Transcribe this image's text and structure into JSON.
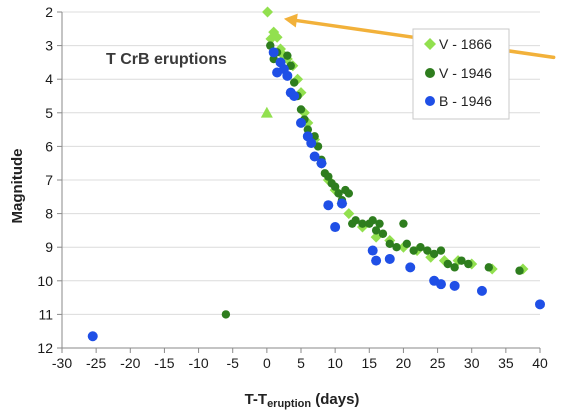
{
  "chart_data": {
    "type": "scatter",
    "title": "T CrB eruptions",
    "xlabel_prefix": "T-T",
    "xlabel_sub": "eruption",
    "xlabel_suffix": " (days)",
    "ylabel": "Magnitude",
    "xlim": [
      -30,
      40
    ],
    "ylim": [
      2,
      12
    ],
    "y_inverted": true,
    "x_ticks": [
      -30,
      -25,
      -20,
      -15,
      -10,
      -5,
      0,
      5,
      10,
      15,
      20,
      25,
      30,
      35,
      40
    ],
    "y_ticks": [
      2,
      3,
      4,
      5,
      6,
      7,
      8,
      9,
      10,
      11,
      12
    ],
    "legend_position": "top-right",
    "colors": {
      "v1866": "#92e04f",
      "v1946": "#2e7d1e",
      "b1946": "#1f4fe6",
      "arrow": "#f2b13a"
    },
    "annotation": {
      "type": "arrow",
      "from": [
        42,
        3.35
      ],
      "to": [
        2.5,
        2.2
      ]
    },
    "series": [
      {
        "name": "V - 1866",
        "marker": "diamond",
        "points": [
          [
            0.1,
            2.0
          ],
          [
            0.6,
            2.8
          ],
          [
            1.0,
            2.6
          ],
          [
            1.5,
            2.75
          ],
          [
            2.0,
            3.1
          ],
          [
            2.5,
            3.3
          ],
          [
            3.0,
            3.4
          ],
          [
            3.8,
            3.6
          ],
          [
            4.5,
            4.0
          ],
          [
            5.0,
            4.4
          ],
          [
            5.5,
            5.0
          ],
          [
            6.0,
            5.3
          ],
          [
            7.0,
            5.8
          ],
          [
            8.0,
            6.5
          ],
          [
            9.0,
            7.0
          ],
          [
            10.0,
            7.3
          ],
          [
            11.0,
            7.7
          ],
          [
            12.0,
            8.0
          ],
          [
            14.0,
            8.4
          ],
          [
            16.0,
            8.7
          ],
          [
            18.0,
            8.8
          ],
          [
            20.0,
            9.0
          ],
          [
            22.0,
            9.1
          ],
          [
            24.0,
            9.3
          ],
          [
            26.0,
            9.4
          ],
          [
            28.0,
            9.4
          ],
          [
            30.0,
            9.5
          ],
          [
            33.0,
            9.65
          ],
          [
            37.5,
            9.65
          ]
        ]
      },
      {
        "name": "",
        "marker": "triangle",
        "points": [
          [
            0.0,
            5.0
          ]
        ]
      },
      {
        "name": "V - 1946",
        "marker": "circle",
        "points": [
          [
            -6.0,
            11.0
          ],
          [
            0.5,
            3.0
          ],
          [
            1.0,
            3.4
          ],
          [
            1.5,
            3.2
          ],
          [
            2.0,
            3.5
          ],
          [
            2.5,
            3.7
          ],
          [
            3.0,
            3.3
          ],
          [
            3.5,
            3.6
          ],
          [
            4.0,
            4.1
          ],
          [
            4.5,
            4.5
          ],
          [
            5.0,
            4.9
          ],
          [
            5.5,
            5.2
          ],
          [
            6.0,
            5.5
          ],
          [
            6.5,
            5.8
          ],
          [
            7.0,
            5.7
          ],
          [
            7.5,
            6.0
          ],
          [
            8.0,
            6.4
          ],
          [
            8.5,
            6.8
          ],
          [
            9.0,
            6.9
          ],
          [
            9.5,
            7.1
          ],
          [
            10.0,
            7.2
          ],
          [
            10.5,
            7.4
          ],
          [
            11.0,
            7.6
          ],
          [
            11.5,
            7.3
          ],
          [
            12.0,
            7.4
          ],
          [
            12.5,
            8.3
          ],
          [
            13.0,
            8.2
          ],
          [
            14.0,
            8.3
          ],
          [
            15.0,
            8.3
          ],
          [
            15.5,
            8.2
          ],
          [
            16.0,
            8.5
          ],
          [
            16.5,
            8.3
          ],
          [
            17.0,
            8.6
          ],
          [
            18.0,
            8.9
          ],
          [
            19.0,
            9.0
          ],
          [
            20.0,
            8.3
          ],
          [
            20.5,
            8.9
          ],
          [
            21.5,
            9.1
          ],
          [
            22.5,
            9.0
          ],
          [
            23.5,
            9.1
          ],
          [
            24.5,
            9.2
          ],
          [
            25.5,
            9.1
          ],
          [
            26.5,
            9.5
          ],
          [
            27.5,
            9.6
          ],
          [
            28.5,
            9.4
          ],
          [
            29.5,
            9.5
          ],
          [
            32.5,
            9.6
          ],
          [
            37.0,
            9.7
          ]
        ]
      },
      {
        "name": "B - 1946",
        "marker": "circle",
        "points": [
          [
            -25.5,
            11.65
          ],
          [
            1.0,
            3.2
          ],
          [
            1.5,
            3.8
          ],
          [
            2.0,
            3.5
          ],
          [
            2.5,
            3.7
          ],
          [
            3.0,
            3.9
          ],
          [
            3.5,
            4.4
          ],
          [
            4.0,
            4.5
          ],
          [
            5.0,
            5.3
          ],
          [
            6.0,
            5.7
          ],
          [
            6.5,
            5.9
          ],
          [
            7.0,
            6.3
          ],
          [
            8.0,
            6.5
          ],
          [
            9.0,
            7.75
          ],
          [
            10.0,
            8.4
          ],
          [
            11.0,
            7.7
          ],
          [
            15.5,
            9.1
          ],
          [
            16.0,
            9.4
          ],
          [
            18.0,
            9.35
          ],
          [
            21.0,
            9.6
          ],
          [
            24.5,
            10.0
          ],
          [
            25.5,
            10.1
          ],
          [
            27.5,
            10.15
          ],
          [
            31.5,
            10.3
          ],
          [
            40.0,
            10.7
          ]
        ]
      }
    ]
  }
}
